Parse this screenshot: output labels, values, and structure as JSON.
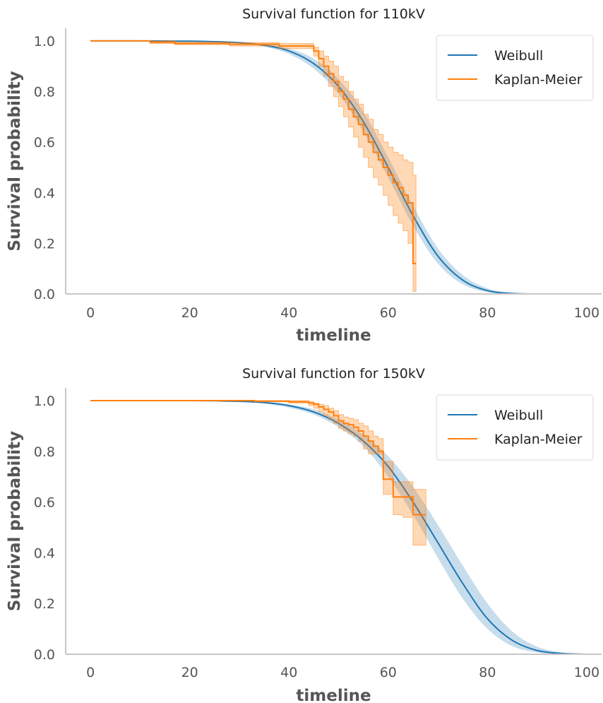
{
  "chart_data": [
    {
      "type": "line",
      "title": "Survival function for 110kV",
      "xlabel": "timeline",
      "ylabel": "Survival probability",
      "xlim": [
        -5,
        103
      ],
      "ylim": [
        0,
        1.05
      ],
      "xticks": [
        "0",
        "20",
        "40",
        "60",
        "80",
        "100"
      ],
      "yticks": [
        "0.0",
        "0.2",
        "0.4",
        "0.6",
        "0.8",
        "1.0"
      ],
      "grid": false,
      "legend": "top-right",
      "series": [
        {
          "name": "Weibull",
          "color": "#1f77b4",
          "kind": "curve",
          "x": [
            0,
            10,
            20,
            25,
            30,
            35,
            40,
            45,
            50,
            55,
            60,
            65,
            70,
            75,
            80,
            85,
            90,
            100
          ],
          "y": [
            1.0,
            1.0,
            0.999,
            0.997,
            0.993,
            0.983,
            0.96,
            0.91,
            0.82,
            0.68,
            0.5,
            0.31,
            0.15,
            0.055,
            0.013,
            0.002,
            0.0,
            0.0
          ],
          "y_lower": [
            1.0,
            1.0,
            0.999,
            0.996,
            0.99,
            0.977,
            0.948,
            0.89,
            0.79,
            0.64,
            0.46,
            0.27,
            0.12,
            0.038,
            0.007,
            0.001,
            0.0,
            0.0
          ],
          "y_upper": [
            1.0,
            1.0,
            1.0,
            0.998,
            0.995,
            0.988,
            0.97,
            0.93,
            0.85,
            0.72,
            0.54,
            0.35,
            0.18,
            0.075,
            0.022,
            0.004,
            0.0,
            0.0
          ]
        },
        {
          "name": "Kaplan-Meier",
          "color": "#ff7f0e",
          "kind": "step",
          "x": [
            0,
            12,
            17,
            28,
            38,
            45,
            46,
            47,
            48,
            49,
            50,
            51,
            52,
            53,
            54,
            55,
            56,
            57,
            58,
            59,
            60,
            61,
            62,
            63,
            64,
            65
          ],
          "y": [
            1.0,
            0.995,
            0.99,
            0.987,
            0.98,
            0.96,
            0.93,
            0.9,
            0.87,
            0.84,
            0.8,
            0.77,
            0.73,
            0.7,
            0.67,
            0.63,
            0.6,
            0.56,
            0.53,
            0.5,
            0.47,
            0.44,
            0.42,
            0.39,
            0.36,
            0.12
          ],
          "y_lower": [
            1.0,
            0.99,
            0.985,
            0.98,
            0.97,
            0.94,
            0.9,
            0.86,
            0.82,
            0.78,
            0.74,
            0.7,
            0.66,
            0.62,
            0.58,
            0.54,
            0.5,
            0.46,
            0.43,
            0.39,
            0.35,
            0.31,
            0.28,
            0.25,
            0.2,
            0.01
          ],
          "y_upper": [
            1.0,
            1.0,
            0.995,
            0.993,
            0.99,
            0.975,
            0.96,
            0.94,
            0.92,
            0.9,
            0.86,
            0.84,
            0.8,
            0.77,
            0.75,
            0.71,
            0.69,
            0.65,
            0.63,
            0.6,
            0.58,
            0.56,
            0.55,
            0.53,
            0.52,
            0.47
          ]
        }
      ]
    },
    {
      "type": "line",
      "title": "Survival function for 150kV",
      "xlabel": "timeline",
      "ylabel": "Survival probability",
      "xlim": [
        -5,
        103
      ],
      "ylim": [
        0,
        1.05
      ],
      "xticks": [
        "0",
        "20",
        "40",
        "60",
        "80",
        "100"
      ],
      "yticks": [
        "0.0",
        "0.2",
        "0.4",
        "0.6",
        "0.8",
        "1.0"
      ],
      "grid": false,
      "legend": "top-right",
      "series": [
        {
          "name": "Weibull",
          "color": "#1f77b4",
          "kind": "curve",
          "x": [
            0,
            10,
            20,
            25,
            30,
            35,
            40,
            45,
            50,
            55,
            60,
            65,
            70,
            75,
            80,
            85,
            90,
            95,
            100
          ],
          "y": [
            1.0,
            1.0,
            1.0,
            0.999,
            0.997,
            0.992,
            0.98,
            0.955,
            0.91,
            0.84,
            0.74,
            0.6,
            0.44,
            0.28,
            0.14,
            0.055,
            0.015,
            0.003,
            0.0
          ],
          "y_lower": [
            1.0,
            1.0,
            1.0,
            0.998,
            0.995,
            0.988,
            0.972,
            0.945,
            0.895,
            0.82,
            0.7,
            0.55,
            0.38,
            0.22,
            0.1,
            0.032,
            0.007,
            0.001,
            0.0
          ],
          "y_upper": [
            1.0,
            1.0,
            1.0,
            1.0,
            0.998,
            0.995,
            0.985,
            0.965,
            0.925,
            0.865,
            0.78,
            0.66,
            0.51,
            0.35,
            0.2,
            0.09,
            0.03,
            0.007,
            0.001
          ]
        },
        {
          "name": "Kaplan-Meier",
          "color": "#ff7f0e",
          "kind": "step",
          "x": [
            0,
            33,
            40,
            44,
            45,
            46,
            47,
            48,
            49,
            50,
            51,
            52,
            53,
            54,
            55,
            56,
            57,
            58,
            59,
            61,
            63,
            65,
            67
          ],
          "y": [
            1.0,
            0.998,
            0.995,
            0.99,
            0.985,
            0.975,
            0.965,
            0.955,
            0.94,
            0.92,
            0.91,
            0.905,
            0.895,
            0.88,
            0.86,
            0.84,
            0.82,
            0.8,
            0.69,
            0.62,
            0.62,
            0.55,
            0.55
          ],
          "y_lower": [
            1.0,
            0.995,
            0.99,
            0.98,
            0.97,
            0.955,
            0.94,
            0.925,
            0.91,
            0.89,
            0.88,
            0.87,
            0.86,
            0.84,
            0.81,
            0.79,
            0.79,
            0.79,
            0.63,
            0.55,
            0.54,
            0.43,
            0.43
          ],
          "y_upper": [
            1.0,
            1.0,
            1.0,
            0.995,
            0.99,
            0.985,
            0.98,
            0.97,
            0.96,
            0.945,
            0.935,
            0.93,
            0.925,
            0.91,
            0.9,
            0.88,
            0.86,
            0.85,
            0.76,
            0.68,
            0.68,
            0.65,
            0.65
          ]
        }
      ]
    }
  ]
}
